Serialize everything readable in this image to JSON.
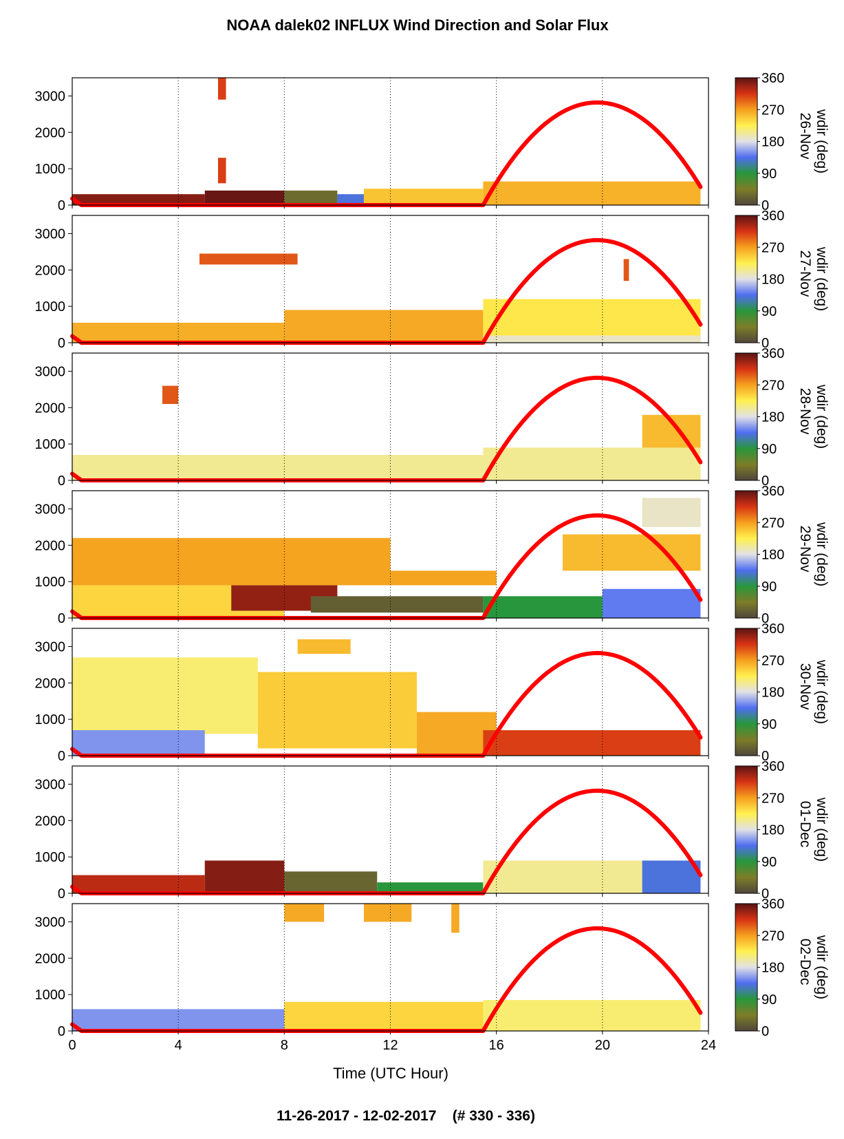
{
  "title": "NOAA dalek02 INFLUX Wind Direction and Solar Flux",
  "footer": "11-26-2017 - 12-02-2017    (# 330 - 336)",
  "chart_data": {
    "type": "heatmap",
    "xlabel": "Time (UTC Hour)",
    "xlim": [
      0,
      24
    ],
    "x_ticks": [
      "0",
      "4",
      "8",
      "12",
      "16",
      "20",
      "24"
    ],
    "ylim": [
      0,
      3500
    ],
    "y_ticks": [
      "0",
      "1000",
      "2000",
      "3000"
    ],
    "colorbar": {
      "label": "wdir (deg)",
      "range": [
        0,
        360
      ],
      "ticks": [
        "0",
        "90",
        "180",
        "270",
        "360"
      ]
    },
    "solar_flux_curve": {
      "color": "#ff0000",
      "sunrise_hour": 15.5,
      "peak_hour": 19.8,
      "peak_value": 2820,
      "end_hour": 23.7,
      "end_value": 600
    },
    "panels": [
      {
        "day": "26-Nov",
        "layers": [
          {
            "x0": 0,
            "x1": 5,
            "y0": 0,
            "y1": 300,
            "wdir": 345
          },
          {
            "x0": 5,
            "x1": 8,
            "y0": 0,
            "y1": 400,
            "wdir": 355
          },
          {
            "x0": 8,
            "x1": 10,
            "y0": 0,
            "y1": 400,
            "wdir": 30
          },
          {
            "x0": 10,
            "x1": 11,
            "y0": 0,
            "y1": 300,
            "wdir": 130
          },
          {
            "x0": 11,
            "x1": 15.5,
            "y0": 0,
            "y1": 450,
            "wdir": 250
          },
          {
            "x0": 15.5,
            "x1": 23.7,
            "y0": 0,
            "y1": 650,
            "wdir": 260
          },
          {
            "x0": 5.5,
            "x1": 5.8,
            "y0": 600,
            "y1": 1300,
            "wdir": 310
          },
          {
            "x0": 5.5,
            "x1": 5.8,
            "y0": 2900,
            "y1": 3500,
            "wdir": 310
          }
        ]
      },
      {
        "day": "27-Nov",
        "layers": [
          {
            "x0": 0,
            "x1": 8,
            "y0": 0,
            "y1": 550,
            "wdir": 262
          },
          {
            "x0": 8,
            "x1": 15.5,
            "y0": 0,
            "y1": 900,
            "wdir": 265
          },
          {
            "x0": 15.5,
            "x1": 23.7,
            "y0": 0,
            "y1": 1200,
            "wdir": 230
          },
          {
            "x0": 15.5,
            "x1": 23.7,
            "y0": 0,
            "y1": 200,
            "wdir": 190
          },
          {
            "x0": 4.8,
            "x1": 8.5,
            "y0": 2150,
            "y1": 2450,
            "wdir": 300
          },
          {
            "x0": 20.8,
            "x1": 21.0,
            "y0": 1700,
            "y1": 2300,
            "wdir": 300
          }
        ]
      },
      {
        "day": "28-Nov",
        "layers": [
          {
            "x0": 0,
            "x1": 15.5,
            "y0": 0,
            "y1": 700,
            "wdir": 205
          },
          {
            "x0": 15.5,
            "x1": 23.7,
            "y0": 0,
            "y1": 900,
            "wdir": 205
          },
          {
            "x0": 21.5,
            "x1": 23.7,
            "y0": 900,
            "y1": 1800,
            "wdir": 255
          },
          {
            "x0": 3.4,
            "x1": 4.0,
            "y0": 2100,
            "y1": 2600,
            "wdir": 300
          }
        ]
      },
      {
        "day": "29-Nov",
        "layers": [
          {
            "x0": 0,
            "x1": 12,
            "y0": 900,
            "y1": 2200,
            "wdir": 268
          },
          {
            "x0": 12,
            "x1": 16,
            "y0": 900,
            "y1": 1300,
            "wdir": 268
          },
          {
            "x0": 18.5,
            "x1": 23.7,
            "y0": 1300,
            "y1": 2300,
            "wdir": 255
          },
          {
            "x0": 0,
            "x1": 8,
            "y0": 0,
            "y1": 900,
            "wdir": 240
          },
          {
            "x0": 6,
            "x1": 10,
            "y0": 200,
            "y1": 900,
            "wdir": 340
          },
          {
            "x0": 9,
            "x1": 15.5,
            "y0": 150,
            "y1": 600,
            "wdir": 20
          },
          {
            "x0": 15.5,
            "x1": 20,
            "y0": 0,
            "y1": 600,
            "wdir": 90
          },
          {
            "x0": 20,
            "x1": 23.7,
            "y0": 0,
            "y1": 800,
            "wdir": 140
          },
          {
            "x0": 21.5,
            "x1": 23.7,
            "y0": 2500,
            "y1": 3300,
            "wdir": 190
          }
        ]
      },
      {
        "day": "30-Nov",
        "layers": [
          {
            "x0": 0,
            "x1": 7,
            "y0": 600,
            "y1": 2700,
            "wdir": 215
          },
          {
            "x0": 7,
            "x1": 13,
            "y0": 200,
            "y1": 2300,
            "wdir": 245
          },
          {
            "x0": 13,
            "x1": 16,
            "y0": 0,
            "y1": 1200,
            "wdir": 265
          },
          {
            "x0": 0,
            "x1": 5,
            "y0": 0,
            "y1": 700,
            "wdir": 150
          },
          {
            "x0": 15.5,
            "x1": 23.7,
            "y0": 0,
            "y1": 700,
            "wdir": 310
          },
          {
            "x0": 8.5,
            "x1": 10.5,
            "y0": 2800,
            "y1": 3200,
            "wdir": 255
          }
        ]
      },
      {
        "day": "01-Dec",
        "layers": [
          {
            "x0": 0,
            "x1": 5,
            "y0": 0,
            "y1": 500,
            "wdir": 325
          },
          {
            "x0": 5,
            "x1": 8,
            "y0": 0,
            "y1": 900,
            "wdir": 345
          },
          {
            "x0": 8,
            "x1": 11.5,
            "y0": 0,
            "y1": 600,
            "wdir": 25
          },
          {
            "x0": 11.5,
            "x1": 15.5,
            "y0": 0,
            "y1": 300,
            "wdir": 90
          },
          {
            "x0": 15.5,
            "x1": 21.5,
            "y0": 0,
            "y1": 900,
            "wdir": 205
          },
          {
            "x0": 21.5,
            "x1": 23.7,
            "y0": 0,
            "y1": 900,
            "wdir": 130
          }
        ]
      },
      {
        "day": "02-Dec",
        "layers": [
          {
            "x0": 0,
            "x1": 8,
            "y0": 0,
            "y1": 600,
            "wdir": 150
          },
          {
            "x0": 8,
            "x1": 15.5,
            "y0": 0,
            "y1": 800,
            "wdir": 240
          },
          {
            "x0": 15.5,
            "x1": 23.7,
            "y0": 0,
            "y1": 850,
            "wdir": 215
          },
          {
            "x0": 8,
            "x1": 9.5,
            "y0": 3000,
            "y1": 3500,
            "wdir": 265
          },
          {
            "x0": 11,
            "x1": 12.8,
            "y0": 3000,
            "y1": 3500,
            "wdir": 265
          },
          {
            "x0": 14.3,
            "x1": 14.6,
            "y0": 2700,
            "y1": 3500,
            "wdir": 265
          }
        ]
      }
    ]
  }
}
